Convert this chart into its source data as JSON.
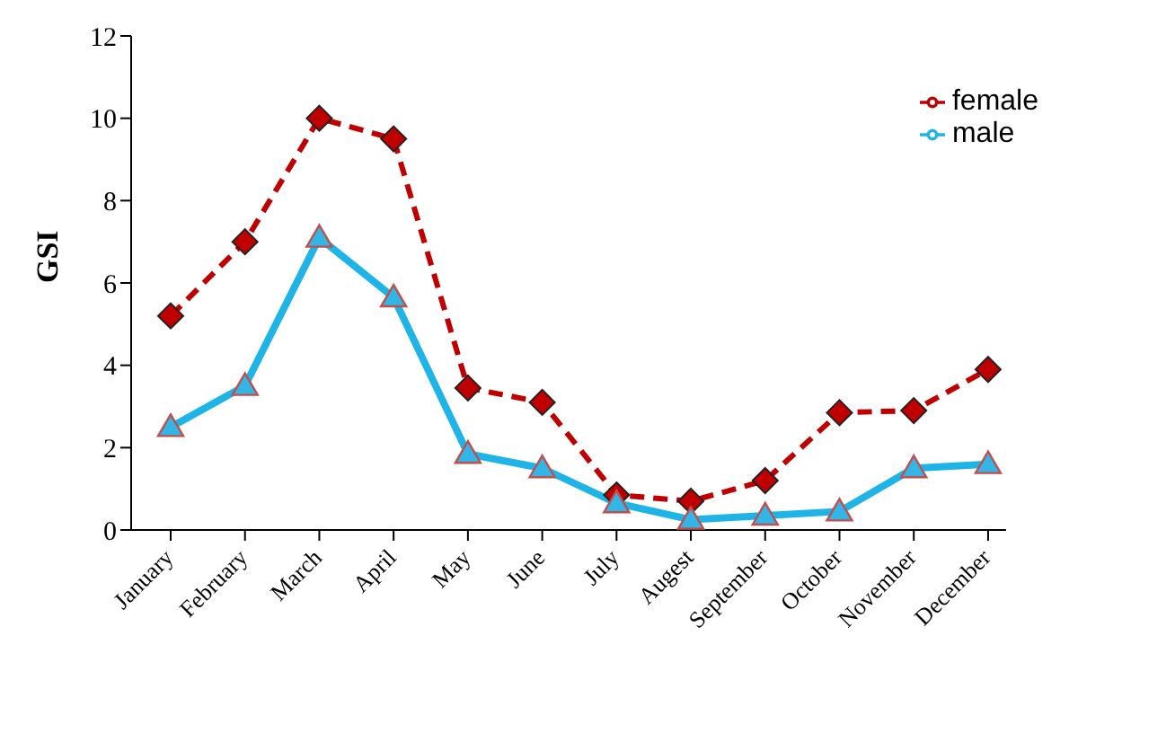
{
  "chart_data": {
    "type": "line",
    "ylabel": "GSI",
    "categories": [
      "January",
      "February",
      "March",
      "April",
      "May",
      "June",
      "July",
      "Augest",
      "September",
      "October",
      "November",
      "December"
    ],
    "series": [
      {
        "name": "female",
        "color": "#c00000",
        "line_style": "dashed",
        "marker": "diamond",
        "values": [
          5.2,
          7.0,
          10.0,
          9.5,
          3.45,
          3.1,
          0.85,
          0.7,
          1.2,
          2.85,
          2.9,
          3.9
        ]
      },
      {
        "name": "male",
        "color": "#1fb4e8",
        "line_style": "solid",
        "marker": "triangle",
        "values": [
          2.5,
          3.5,
          7.1,
          5.65,
          1.85,
          1.5,
          0.65,
          0.25,
          0.35,
          0.45,
          1.5,
          1.6
        ]
      }
    ],
    "ylim": [
      0,
      12
    ],
    "yticks": [
      0,
      2,
      4,
      6,
      8,
      10,
      12
    ],
    "grid": false,
    "legend": "top right"
  }
}
